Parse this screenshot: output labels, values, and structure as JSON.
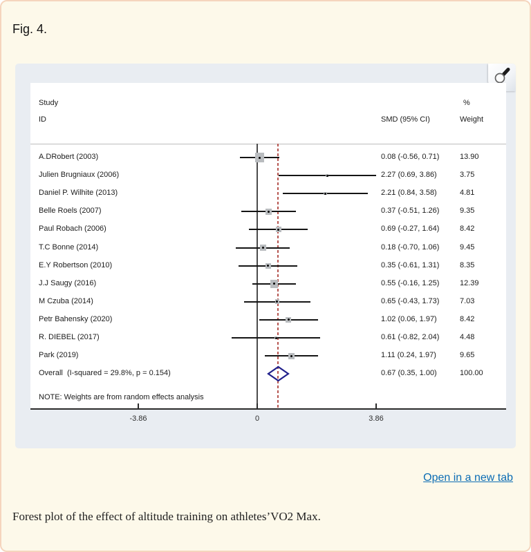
{
  "page": {
    "figure_label": "Fig. 4.",
    "open_link_label": "Open in a new tab",
    "caption": "Forest plot of the effect of altitude training on athletes’VO2 Max.",
    "colors": {
      "page_background": "#fdf9ea",
      "page_border": "#f5d5bd",
      "panel_background": "#e9edf2",
      "link_blue": "#0b6cb4",
      "overall_line_red": "#b65550",
      "diamond_navy": "#20208c",
      "marker_gray": "#b9bcbf"
    },
    "icons": {
      "magnifier": "magnifier-icon"
    }
  },
  "chart_data": {
    "type": "forest",
    "effect_measure": "SMD",
    "headers": {
      "study_line1": "Study",
      "study_line2": "ID",
      "smd": "SMD (95% CI)",
      "percent": "%",
      "weight": "Weight"
    },
    "note": "NOTE: Weights are from random effects analysis",
    "axis": {
      "tick_values": [
        -3.86,
        0,
        3.86
      ],
      "tick_labels": [
        "-3.86",
        "0",
        "3.86"
      ],
      "zero_line": 0,
      "overall_effect_line": 0.67
    },
    "rows": [
      {
        "id": "A.DRobert (2003)",
        "smd": 0.08,
        "ci_low": -0.56,
        "ci_high": 0.71,
        "smd_label": "0.08 (-0.56, 0.71)",
        "weight": 13.9,
        "weight_label": "13.90"
      },
      {
        "id": "Julien Brugniaux (2006)",
        "smd": 2.27,
        "ci_low": 0.69,
        "ci_high": 3.86,
        "smd_label": "2.27 (0.69, 3.86)",
        "weight": 3.75,
        "weight_label": "3.75"
      },
      {
        "id": "Daniel P. Wilhite (2013)",
        "smd": 2.21,
        "ci_low": 0.84,
        "ci_high": 3.58,
        "smd_label": "2.21 (0.84, 3.58)",
        "weight": 4.81,
        "weight_label": "4.81"
      },
      {
        "id": "Belle Roels (2007)",
        "smd": 0.37,
        "ci_low": -0.51,
        "ci_high": 1.26,
        "smd_label": "0.37 (-0.51, 1.26)",
        "weight": 9.35,
        "weight_label": "9.35"
      },
      {
        "id": "Paul Robach (2006)",
        "smd": 0.69,
        "ci_low": -0.27,
        "ci_high": 1.64,
        "smd_label": "0.69 (-0.27, 1.64)",
        "weight": 8.42,
        "weight_label": "8.42"
      },
      {
        "id": "T.C Bonne (2014)",
        "smd": 0.18,
        "ci_low": -0.7,
        "ci_high": 1.06,
        "smd_label": "0.18 (-0.70, 1.06)",
        "weight": 9.45,
        "weight_label": "9.45"
      },
      {
        "id": "E.Y Robertson (2010)",
        "smd": 0.35,
        "ci_low": -0.61,
        "ci_high": 1.31,
        "smd_label": "0.35 (-0.61, 1.31)",
        "weight": 8.35,
        "weight_label": "8.35"
      },
      {
        "id": "J.J Saugy (2016)",
        "smd": 0.55,
        "ci_low": -0.16,
        "ci_high": 1.25,
        "smd_label": "0.55 (-0.16, 1.25)",
        "weight": 12.39,
        "weight_label": "12.39"
      },
      {
        "id": "M Czuba (2014)",
        "smd": 0.65,
        "ci_low": -0.43,
        "ci_high": 1.73,
        "smd_label": "0.65 (-0.43, 1.73)",
        "weight": 7.03,
        "weight_label": "7.03"
      },
      {
        "id": "Petr Bahensky (2020)",
        "smd": 1.02,
        "ci_low": 0.06,
        "ci_high": 1.97,
        "smd_label": "1.02 (0.06, 1.97)",
        "weight": 8.42,
        "weight_label": "8.42"
      },
      {
        "id": "R. DIEBEL (2017)",
        "smd": 0.61,
        "ci_low": -0.82,
        "ci_high": 2.04,
        "smd_label": "0.61 (-0.82, 2.04)",
        "weight": 4.48,
        "weight_label": "4.48"
      },
      {
        "id": "Park (2019)",
        "smd": 1.11,
        "ci_low": 0.24,
        "ci_high": 1.97,
        "smd_label": "1.11 (0.24, 1.97)",
        "weight": 9.65,
        "weight_label": "9.65"
      }
    ],
    "overall": {
      "id": "Overall  (I-squared = 29.8%, p = 0.154)",
      "smd": 0.67,
      "ci_low": 0.35,
      "ci_high": 1.0,
      "smd_label": "0.67 (0.35, 1.00)",
      "weight": 100.0,
      "weight_label": "100.00"
    }
  }
}
